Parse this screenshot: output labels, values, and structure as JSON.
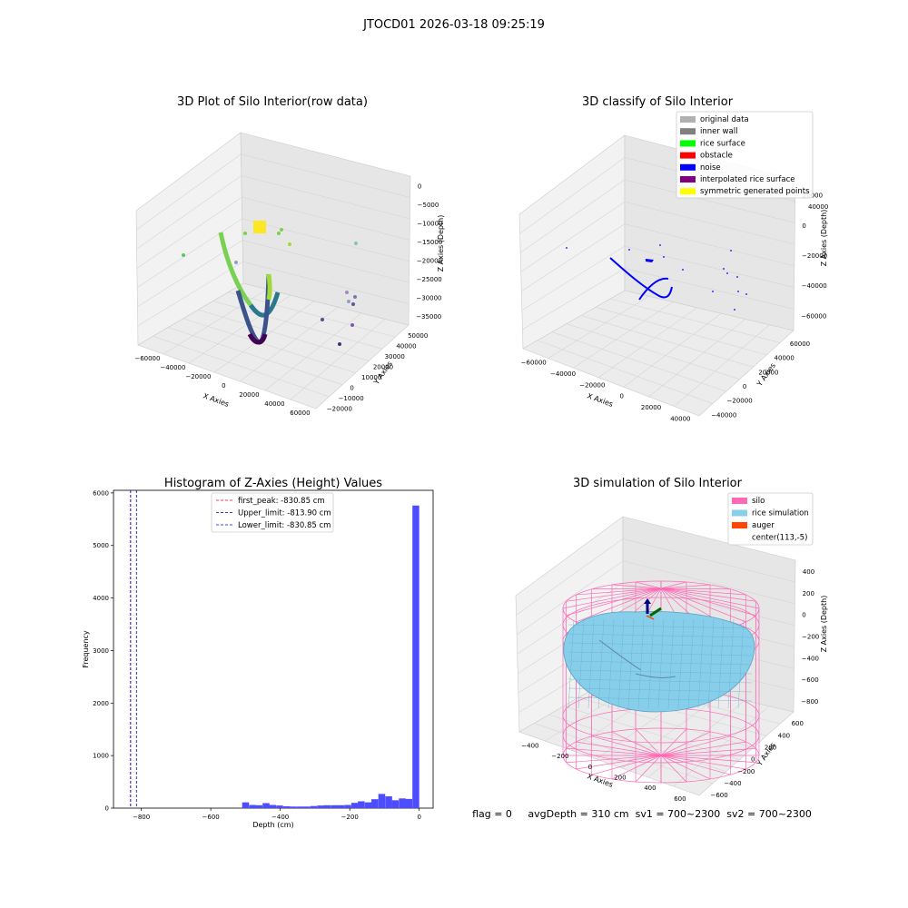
{
  "figure": {
    "suptitle": "JTOCD01 2026-03-18 09:25:19",
    "status_line": "flag = 0     avgDepth = 310 cm  sv1 = 700~2300  sv2 = 700~2300"
  },
  "panels": {
    "raw": {
      "title": "3D Plot of Silo Interior(row data)",
      "xlabel": "X Axies",
      "ylabel": "Y Axies",
      "zlabel": "Z Axies (Depth)",
      "xticks": [
        "−60000",
        "−40000",
        "−20000",
        "0",
        "20000",
        "40000",
        "60000"
      ],
      "yticks": [
        "−20000",
        "−10000",
        "0",
        "10000",
        "20000",
        "30000",
        "40000",
        "50000"
      ],
      "zticks": [
        "0",
        "−5000",
        "−10000",
        "−15000",
        "−20000",
        "−25000",
        "−30000",
        "−35000"
      ]
    },
    "classify": {
      "title": "3D classify of Silo Interior",
      "xlabel": "X Axies",
      "ylabel": "Y Axies",
      "zlabel": "Z Axies (Depth)",
      "xticks": [
        "−60000",
        "−40000",
        "−20000",
        "0",
        "20000",
        "40000"
      ],
      "yticks": [
        "−40000",
        "−20000",
        "0",
        "20000",
        "40000",
        "60000"
      ],
      "zticks": [
        "20000",
        "0",
        "−20000",
        "−40000",
        "−60000"
      ],
      "zticks_top": "40000",
      "legend": [
        {
          "label": "original data",
          "color": "#b0b0b0"
        },
        {
          "label": "inner wall",
          "color": "#808080"
        },
        {
          "label": "rice surface",
          "color": "#00ff00"
        },
        {
          "label": "obstacle",
          "color": "#ff0000"
        },
        {
          "label": "noise",
          "color": "#0000ff"
        },
        {
          "label": "interpolated rice surface",
          "color": "#800080"
        },
        {
          "label": "symmetric generated points",
          "color": "#ffff00"
        }
      ]
    },
    "simulation": {
      "title": "3D simulation of Silo Interior",
      "xlabel": "X Axies",
      "ylabel": "Y Axies",
      "zlabel": "Z Axies (Depth)",
      "xticks": [
        "−400",
        "−200",
        "0",
        "200",
        "400",
        "600"
      ],
      "yticks": [
        "−600",
        "−400",
        "−200",
        "0",
        "200",
        "400",
        "600"
      ],
      "zticks": [
        "400",
        "200",
        "0",
        "−200",
        "−400",
        "−600",
        "−800"
      ],
      "legend": [
        {
          "label": "silo",
          "color": "#ff69b4"
        },
        {
          "label": "rice simulation",
          "color": "#87ceeb"
        },
        {
          "label": "auger",
          "color": "#ff4500"
        },
        {
          "label": "center(113,-5)",
          "color": "#ffffff"
        }
      ]
    }
  },
  "chart_data": [
    {
      "type": "scatter",
      "title": "3D Plot of Silo Interior(row data)",
      "xlabel": "X Axies",
      "ylabel": "Y Axies",
      "zlabel": "Z Axies (Depth)",
      "xlim": [
        -60000,
        60000
      ],
      "ylim": [
        -20000,
        50000
      ],
      "zlim": [
        -35000,
        0
      ],
      "colormap": "viridis",
      "grid": true
    },
    {
      "type": "scatter",
      "title": "3D classify of Silo Interior",
      "xlabel": "X Axies",
      "ylabel": "Y Axies",
      "zlabel": "Z Axies (Depth)",
      "xlim": [
        -60000,
        40000
      ],
      "ylim": [
        -40000,
        60000
      ],
      "zlim": [
        -60000,
        40000
      ],
      "legend_position": "top-right",
      "grid": true
    },
    {
      "type": "bar",
      "title": "Histogram of Z-Axies (Height) Values",
      "xlabel": "Depth (cm)",
      "ylabel": "Frequency",
      "xlim": [
        -880,
        40
      ],
      "ylim": [
        0,
        6050
      ],
      "xticks": [
        -800,
        -600,
        -400,
        -200,
        0
      ],
      "yticks": [
        0,
        1000,
        2000,
        3000,
        4000,
        5000,
        6000
      ],
      "bar_color": "#4d4dff",
      "bin_width": 19.6,
      "bins": [
        {
          "x": -490,
          "count": 110
        },
        {
          "x": -470,
          "count": 60
        },
        {
          "x": -451,
          "count": 55
        },
        {
          "x": -431,
          "count": 95
        },
        {
          "x": -412,
          "count": 60
        },
        {
          "x": -392,
          "count": 50
        },
        {
          "x": -372,
          "count": 35
        },
        {
          "x": -353,
          "count": 30
        },
        {
          "x": -333,
          "count": 30
        },
        {
          "x": -314,
          "count": 30
        },
        {
          "x": -294,
          "count": 40
        },
        {
          "x": -274,
          "count": 50
        },
        {
          "x": -255,
          "count": 55
        },
        {
          "x": -235,
          "count": 55
        },
        {
          "x": -216,
          "count": 55
        },
        {
          "x": -196,
          "count": 60
        },
        {
          "x": -176,
          "count": 100
        },
        {
          "x": -157,
          "count": 130
        },
        {
          "x": -137,
          "count": 110
        },
        {
          "x": -118,
          "count": 170
        },
        {
          "x": -98,
          "count": 270
        },
        {
          "x": -78,
          "count": 225
        },
        {
          "x": -59,
          "count": 150
        },
        {
          "x": -39,
          "count": 185
        },
        {
          "x": -20,
          "count": 175
        },
        {
          "x": 0,
          "count": 5760
        }
      ],
      "lines": [
        {
          "name": "first_peak: -830.85 cm",
          "x": -830.85,
          "color": "#ff0000"
        },
        {
          "name": "Upper_limit: -813.90 cm",
          "x": -813.9,
          "color": "#00008b"
        },
        {
          "name": "Lower_limit: -830.85 cm",
          "x": -830.85,
          "color": "#0000ff"
        }
      ],
      "legend_position": "top-center"
    },
    {
      "type": "area",
      "title": "3D simulation of Silo Interior",
      "xlabel": "X Axies",
      "ylabel": "Y Axies",
      "zlabel": "Z Axies (Depth)",
      "xlim": [
        -500,
        700
      ],
      "ylim": [
        -700,
        700
      ],
      "zlim": [
        -900,
        450
      ],
      "legend_position": "top-right",
      "grid": true
    }
  ]
}
